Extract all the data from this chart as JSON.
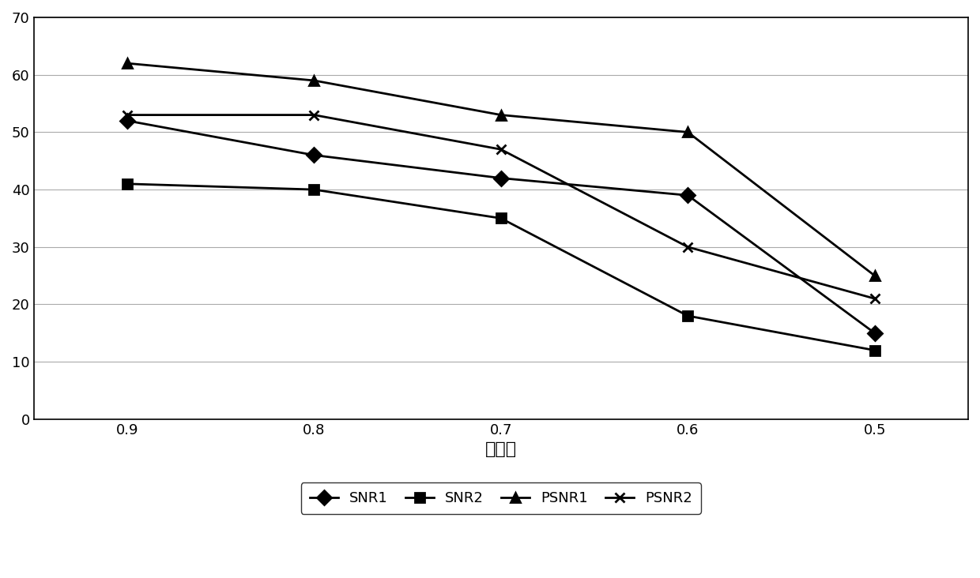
{
  "x_labels": [
    "0.9",
    "0.8",
    "0.7",
    "0.6",
    "0.5"
  ],
  "x_values": [
    1,
    2,
    3,
    4,
    5
  ],
  "series": {
    "SNR1": [
      52,
      46,
      42,
      39,
      15
    ],
    "SNR2": [
      41,
      40,
      35,
      18,
      12
    ],
    "PSNR1": [
      62,
      59,
      53,
      50,
      25
    ],
    "PSNR2": [
      53,
      53,
      47,
      30,
      21
    ]
  },
  "series_order": [
    "SNR1",
    "SNR2",
    "PSNR1",
    "PSNR2"
  ],
  "markers": {
    "SNR1": "D",
    "SNR2": "s",
    "PSNR1": "^",
    "PSNR2": "x"
  },
  "line_color": "#000000",
  "xlabel": "剪枝率",
  "ylim": [
    0,
    70
  ],
  "yticks": [
    0,
    10,
    20,
    30,
    40,
    50,
    60,
    70
  ],
  "background_color": "#ffffff",
  "grid_color": "#aaaaaa",
  "xlabel_fontsize": 16,
  "tick_fontsize": 13,
  "legend_fontsize": 13,
  "linewidth": 2.0,
  "markersize": 9
}
